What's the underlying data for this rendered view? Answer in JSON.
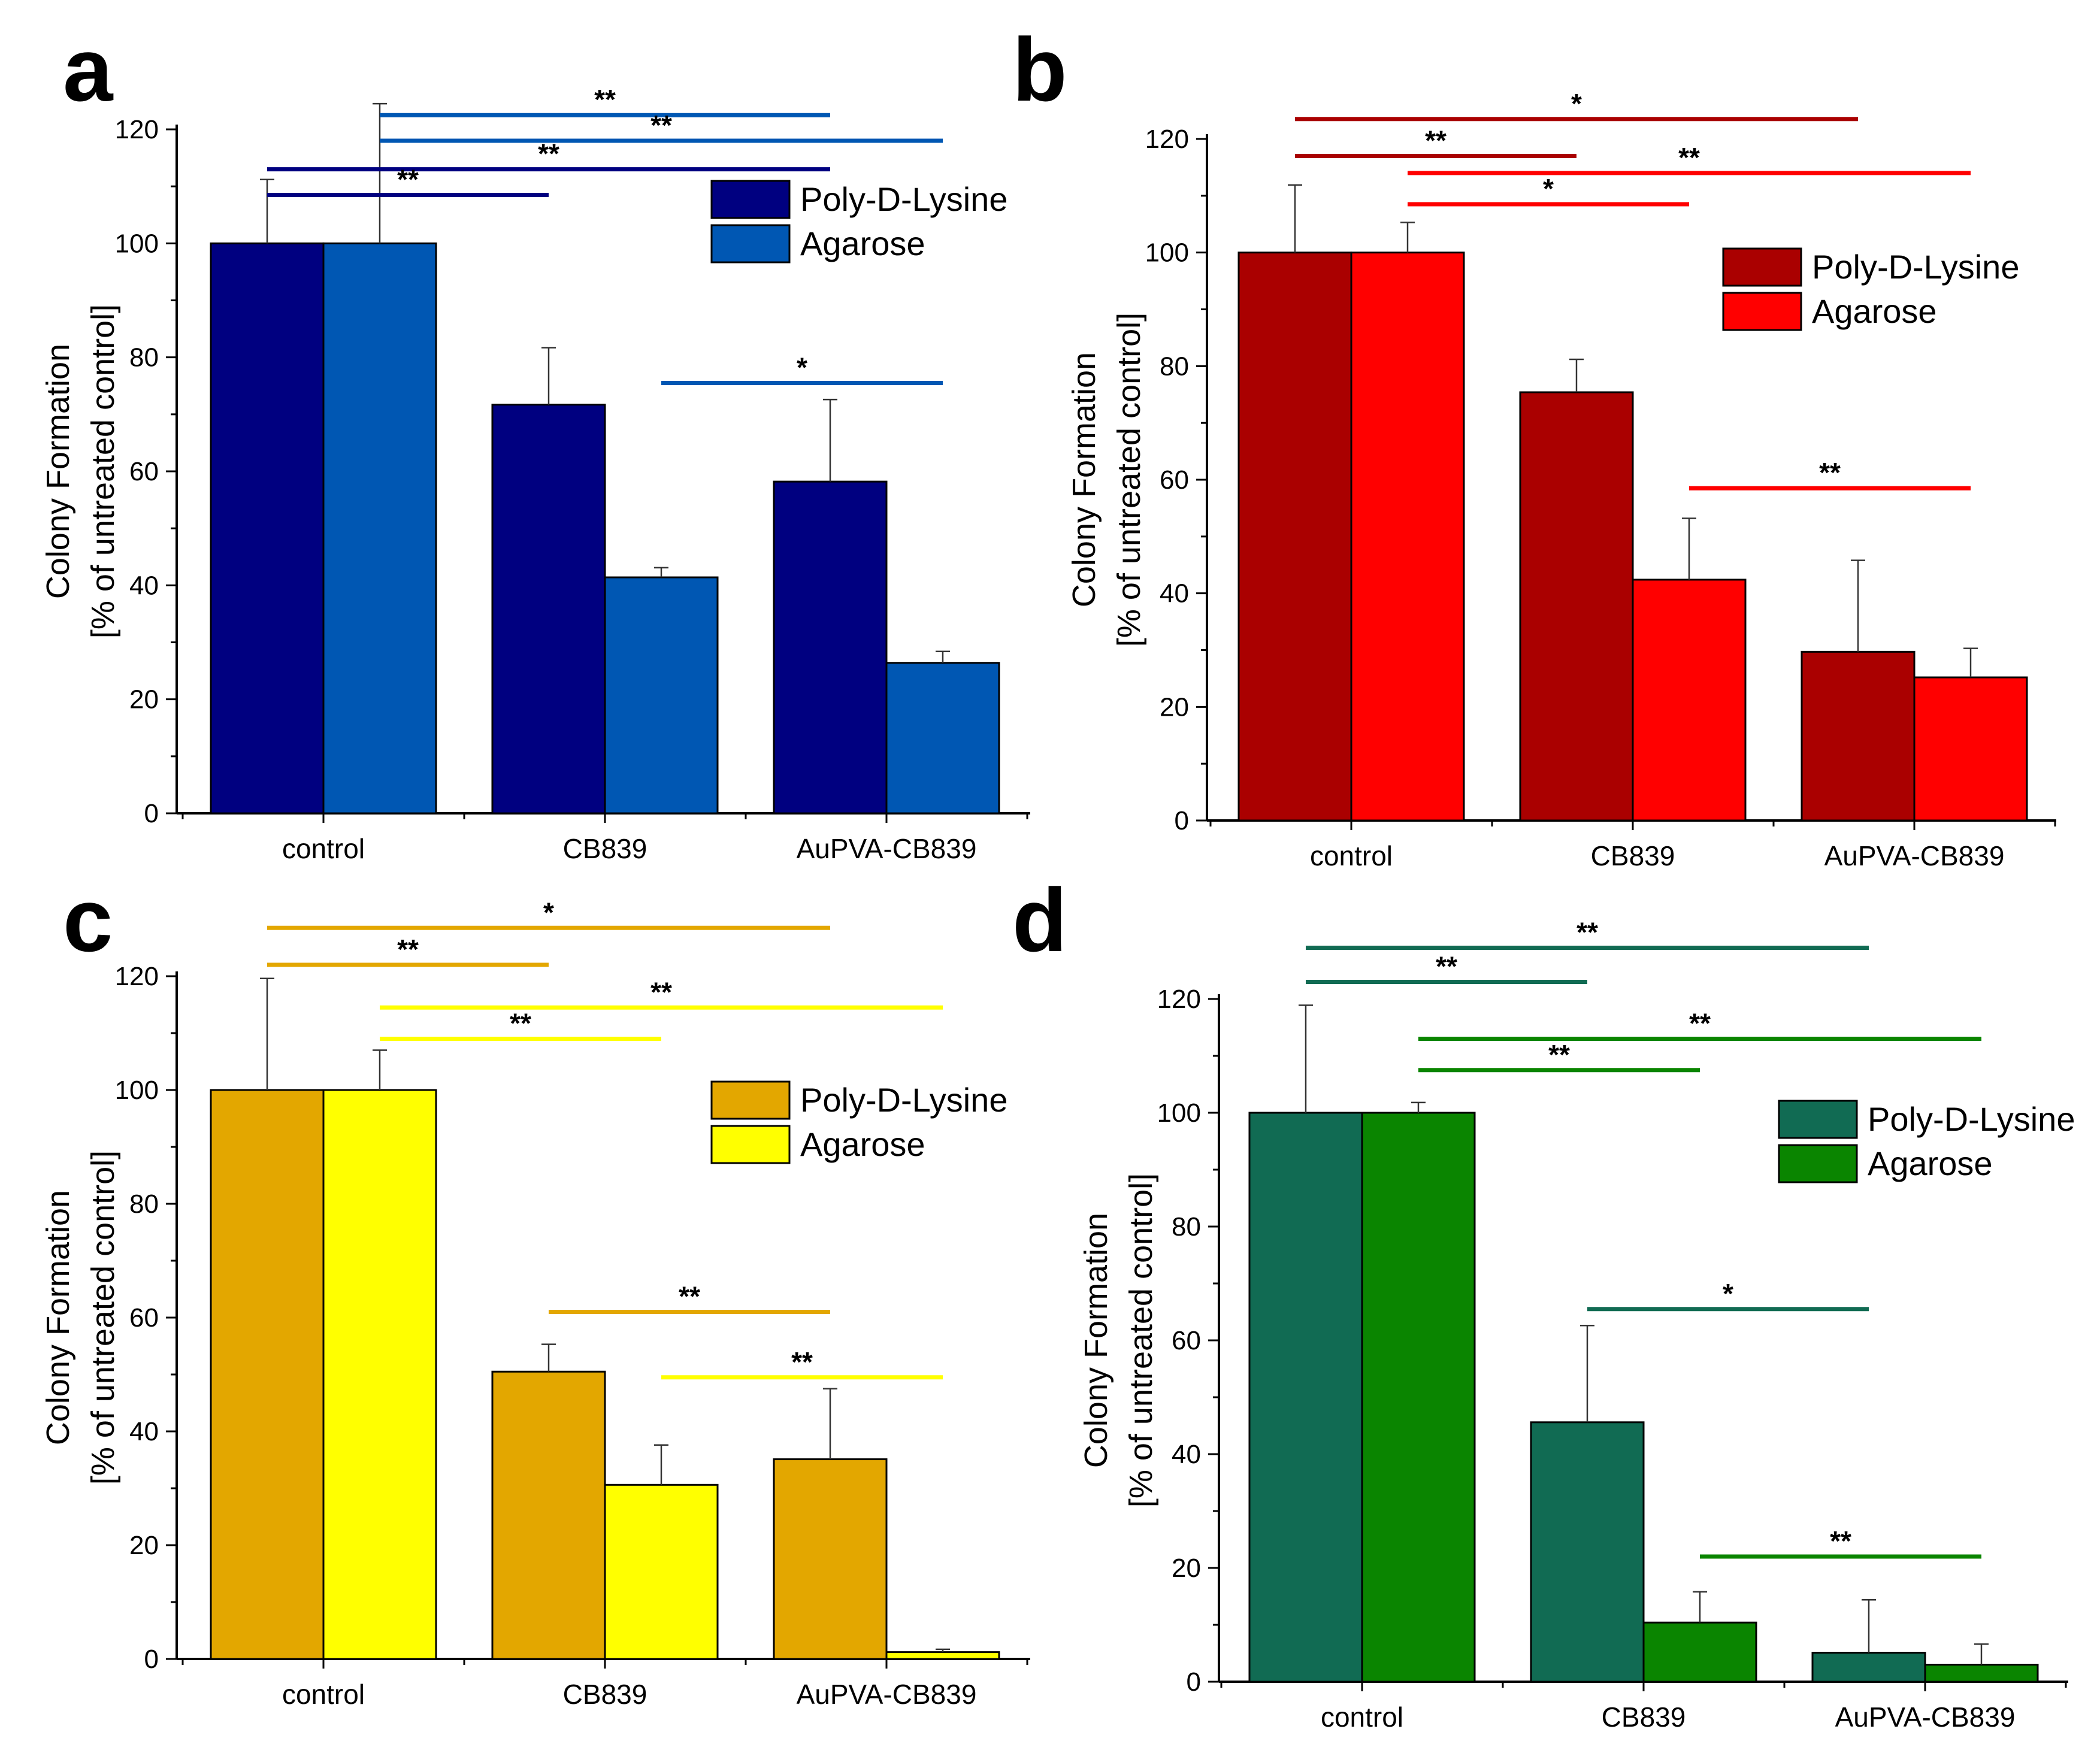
{
  "chart_data": [
    {
      "type": "bar",
      "panel": "a",
      "categories": [
        "control",
        "CB839",
        "AuPVA-CB839"
      ],
      "ylabel_line1": "Colony Formation",
      "ylabel_line2": "[% of untreated control]",
      "ylim": [
        0,
        120
      ],
      "yticks": [
        "0",
        "20",
        "40",
        "60",
        "80",
        "100",
        "120"
      ],
      "series": [
        {
          "name": "Poly-D-Lysine",
          "color": "#000080",
          "values": [
            100,
            71.7,
            58.2
          ],
          "errors": [
            11.2,
            10.0,
            14.4
          ]
        },
        {
          "name": "Agarose",
          "color": "#0057b3",
          "values": [
            100,
            41.4,
            26.4
          ],
          "errors": [
            24.5,
            1.7,
            2.0
          ]
        }
      ],
      "significance": [
        {
          "label": "**",
          "from": [
            0,
            1
          ],
          "to": [
            2,
            0
          ],
          "y": 122.5,
          "color": "#0057b3",
          "text_offset": 0.5
        },
        {
          "label": "**",
          "from": [
            0,
            1
          ],
          "to": [
            2,
            1
          ],
          "y": 118,
          "color": "#0057b3",
          "text_offset": 0
        },
        {
          "label": "**",
          "from": [
            0,
            0
          ],
          "to": [
            2,
            0
          ],
          "y": 113,
          "color": "#000080",
          "text_offset": 0
        },
        {
          "label": "**",
          "from": [
            0,
            0
          ],
          "to": [
            1,
            0
          ],
          "y": 108.5,
          "color": "#000080",
          "text_offset": 0
        },
        {
          "label": "*",
          "from": [
            1,
            1
          ],
          "to": [
            2,
            1
          ],
          "y": 75.5,
          "color": "#0057b3",
          "text_offset": 0
        }
      ]
    },
    {
      "type": "bar",
      "panel": "b",
      "categories": [
        "control",
        "CB839",
        "AuPVA-CB839"
      ],
      "ylabel_line1": "Colony Formation",
      "ylabel_line2": "[% of untreated control]",
      "ylim": [
        0,
        120
      ],
      "yticks": [
        "0",
        "20",
        "40",
        "60",
        "80",
        "100",
        "120"
      ],
      "series": [
        {
          "name": "Poly-D-Lysine",
          "color": "#aa0000",
          "values": [
            100,
            75.4,
            29.7
          ],
          "errors": [
            11.9,
            5.8,
            16.1
          ]
        },
        {
          "name": "Agarose",
          "color": "#ff0000",
          "values": [
            100,
            42.4,
            25.2
          ],
          "errors": [
            5.3,
            10.8,
            5.1
          ]
        }
      ],
      "significance": [
        {
          "label": "*",
          "from": [
            0,
            0
          ],
          "to": [
            2,
            0
          ],
          "y": 123.5,
          "color": "#aa0000",
          "text_offset": 0
        },
        {
          "label": "**",
          "from": [
            0,
            0
          ],
          "to": [
            1,
            0
          ],
          "y": 117,
          "color": "#aa0000",
          "text_offset": 0
        },
        {
          "label": "**",
          "from": [
            0,
            1
          ],
          "to": [
            2,
            1
          ],
          "y": 114,
          "color": "#ff0000",
          "text_offset": 0
        },
        {
          "label": "*",
          "from": [
            0,
            1
          ],
          "to": [
            1,
            1
          ],
          "y": 108.5,
          "color": "#ff0000",
          "text_offset": 0
        },
        {
          "label": "**",
          "from": [
            1,
            1
          ],
          "to": [
            2,
            1
          ],
          "y": 58.5,
          "color": "#ff0000",
          "text_offset": 0
        }
      ]
    },
    {
      "type": "bar",
      "panel": "c",
      "categories": [
        "control",
        "CB839",
        "AuPVA-CB839"
      ],
      "ylabel_line1": "Colony Formation",
      "ylabel_line2": "[% of untreated control]",
      "ylim": [
        0,
        120
      ],
      "yticks": [
        "0",
        "20",
        "40",
        "60",
        "80",
        "100",
        "120"
      ],
      "series": [
        {
          "name": "Poly-D-Lysine",
          "color": "#e3a700",
          "values": [
            100,
            50.5,
            35.1
          ],
          "errors": [
            19.6,
            4.8,
            12.4
          ]
        },
        {
          "name": "Agarose",
          "color": "#ffff00",
          "values": [
            100,
            30.6,
            1.2
          ],
          "errors": [
            7.0,
            7.0,
            0.5
          ]
        }
      ],
      "significance": [
        {
          "label": "*",
          "from": [
            0,
            0
          ],
          "to": [
            2,
            0
          ],
          "y": 128.5,
          "color": "#e3a700",
          "text_offset": 0
        },
        {
          "label": "**",
          "from": [
            0,
            0
          ],
          "to": [
            1,
            0
          ],
          "y": 122,
          "color": "#e3a700",
          "text_offset": 0
        },
        {
          "label": "**",
          "from": [
            0,
            1
          ],
          "to": [
            2,
            1
          ],
          "y": 114.5,
          "color": "#ffff00",
          "text_offset": 0
        },
        {
          "label": "**",
          "from": [
            0,
            1
          ],
          "to": [
            1,
            1
          ],
          "y": 109,
          "color": "#ffff00",
          "text_offset": 0
        },
        {
          "label": "**",
          "from": [
            1,
            0
          ],
          "to": [
            2,
            0
          ],
          "y": 61,
          "color": "#e3a700",
          "text_offset": 0
        },
        {
          "label": "**",
          "from": [
            1,
            1
          ],
          "to": [
            2,
            1
          ],
          "y": 49.5,
          "color": "#ffff00",
          "text_offset": 0
        }
      ]
    },
    {
      "type": "bar",
      "panel": "d",
      "categories": [
        "control",
        "CB839",
        "AuPVA-CB839"
      ],
      "ylabel_line1": "Colony Formation",
      "ylabel_line2": "[% of untreated control]",
      "ylim": [
        0,
        120
      ],
      "yticks": [
        "0",
        "20",
        "40",
        "60",
        "80",
        "100",
        "120"
      ],
      "series": [
        {
          "name": "Poly-D-Lysine",
          "color": "#116b53",
          "values": [
            100,
            45.6,
            5.1
          ],
          "errors": [
            18.9,
            17.0,
            9.3
          ]
        },
        {
          "name": "Agarose",
          "color": "#0a8500",
          "values": [
            100,
            10.4,
            3.0
          ],
          "errors": [
            1.8,
            5.4,
            3.6
          ]
        }
      ],
      "significance": [
        {
          "label": "**",
          "from": [
            0,
            0
          ],
          "to": [
            2,
            0
          ],
          "y": 129,
          "color": "#116b53",
          "text_offset": 0
        },
        {
          "label": "**",
          "from": [
            0,
            0
          ],
          "to": [
            1,
            0
          ],
          "y": 123,
          "color": "#116b53",
          "text_offset": 0
        },
        {
          "label": "**",
          "from": [
            0,
            1
          ],
          "to": [
            2,
            1
          ],
          "y": 113,
          "color": "#0a8500",
          "text_offset": 0
        },
        {
          "label": "**",
          "from": [
            0,
            1
          ],
          "to": [
            1,
            1
          ],
          "y": 107.5,
          "color": "#0a8500",
          "text_offset": 0
        },
        {
          "label": "*",
          "from": [
            1,
            0
          ],
          "to": [
            2,
            0
          ],
          "y": 65.5,
          "color": "#116b53",
          "text_offset": 0
        },
        {
          "label": "**",
          "from": [
            1,
            1
          ],
          "to": [
            2,
            1
          ],
          "y": 22,
          "color": "#0a8500",
          "text_offset": 0
        }
      ]
    }
  ]
}
